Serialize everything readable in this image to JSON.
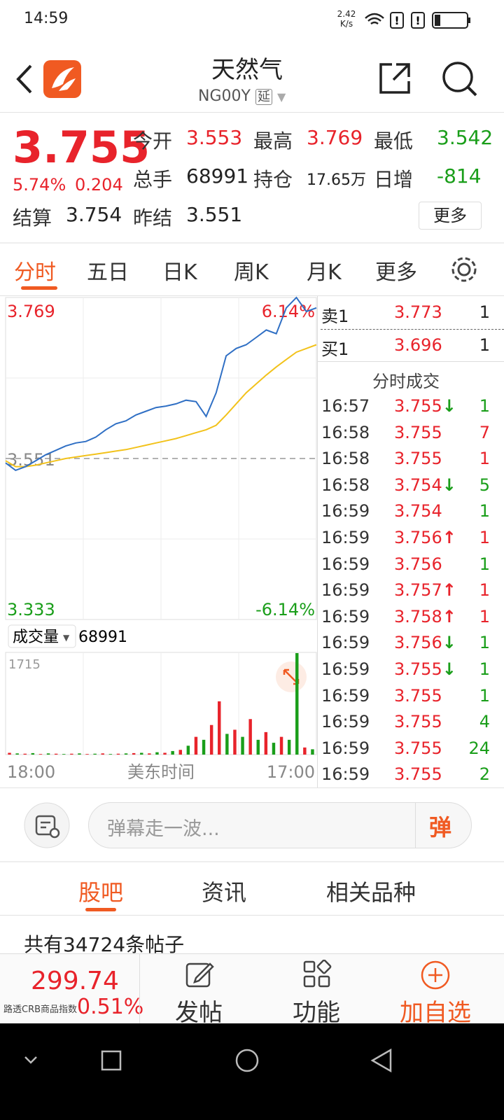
{
  "status_bar": {
    "time": "14:59",
    "speed": "2.42",
    "speed_unit": "K/s"
  },
  "header": {
    "title": "天然气",
    "code": "NG00Y",
    "badge": "延"
  },
  "quote": {
    "price": 3.755,
    "change_percent": "5.74%",
    "change": 0.204,
    "items": [
      {
        "label": "今开",
        "value": 3.553,
        "color": "#e8232b"
      },
      {
        "label": "最高",
        "value": 3.769,
        "color": "#e8232b"
      },
      {
        "label": "最低",
        "value": 3.542,
        "color": "#1a9e1a"
      },
      {
        "label": "总手",
        "value": 68991,
        "color": "#222222"
      },
      {
        "label": "持仓",
        "value": "17.65万",
        "color": "#222222"
      },
      {
        "label": "日增",
        "value": -814,
        "color": "#1a9e1a"
      },
      {
        "label": "结算",
        "value": 3.754,
        "color": "#222222"
      },
      {
        "label": "昨结",
        "value": 3.551,
        "color": "#222222"
      }
    ],
    "more_button": "更多"
  },
  "tabs": {
    "items": [
      "分时",
      "五日",
      "日K",
      "周K",
      "月K",
      "更多"
    ],
    "active": 0
  },
  "chart_data": [
    {
      "type": "line",
      "ylim": [
        3.333,
        3.769
      ],
      "yticks": [
        3.333,
        3.551,
        3.769
      ],
      "ytick_colors": [
        "#1a9e1a",
        "#888888",
        "#e8232b"
      ],
      "right_labels": [
        "-6.14%",
        "6.14%"
      ],
      "xlabels": [
        "18:00",
        "美东时间",
        "17:00"
      ],
      "series": [
        {
          "color": "#2f6fc4",
          "values": [
            3.545,
            3.535,
            3.54,
            3.548,
            3.556,
            3.562,
            3.568,
            3.572,
            3.574,
            3.58,
            3.59,
            3.598,
            3.602,
            3.61,
            3.615,
            3.62,
            3.622,
            3.625,
            3.63,
            3.628,
            3.608,
            3.64,
            3.69,
            3.7,
            3.705,
            3.715,
            3.725,
            3.72,
            3.755,
            3.769,
            3.75,
            3.755
          ]
        },
        {
          "color": "#f2c21b",
          "values": [
            3.548,
            3.54,
            3.54,
            3.542,
            3.545,
            3.548,
            3.551,
            3.553,
            3.555,
            3.557,
            3.559,
            3.561,
            3.563,
            3.566,
            3.569,
            3.572,
            3.575,
            3.578,
            3.582,
            3.586,
            3.59,
            3.596,
            3.61,
            3.625,
            3.64,
            3.652,
            3.664,
            3.675,
            3.685,
            3.695,
            3.7,
            3.705
          ]
        }
      ]
    },
    {
      "type": "bar",
      "label": "成交量",
      "total": 68991,
      "ylim": [
        0,
        1715
      ],
      "yticks": [
        1715
      ],
      "values": [
        30,
        20,
        15,
        25,
        10,
        20,
        15,
        10,
        15,
        20,
        10,
        15,
        20,
        10,
        15,
        20,
        25,
        30,
        20,
        40,
        30,
        60,
        80,
        150,
        300,
        250,
        500,
        900,
        350,
        420,
        300,
        600,
        250,
        380,
        200,
        300,
        250,
        1715,
        120,
        90
      ],
      "colors": [
        "#e8232b",
        "#1a9e1a",
        "#e8232b",
        "#1a9e1a",
        "#e8232b",
        "#1a9e1a",
        "#e8232b",
        "#1a9e1a",
        "#e8232b",
        "#1a9e1a",
        "#e8232b",
        "#1a9e1a",
        "#e8232b",
        "#1a9e1a",
        "#e8232b",
        "#1a9e1a",
        "#e8232b",
        "#1a9e1a",
        "#e8232b",
        "#1a9e1a",
        "#e8232b",
        "#1a9e1a",
        "#e8232b",
        "#1a9e1a",
        "#e8232b",
        "#1a9e1a",
        "#e8232b",
        "#e8232b",
        "#1a9e1a",
        "#e8232b",
        "#1a9e1a",
        "#e8232b",
        "#1a9e1a",
        "#e8232b",
        "#1a9e1a",
        "#e8232b",
        "#1a9e1a",
        "#1a9e1a",
        "#e8232b",
        "#1a9e1a"
      ]
    }
  ],
  "order_book": {
    "rows": [
      {
        "label": "卖1",
        "price": 3.773,
        "volume": 1
      },
      {
        "label": "买1",
        "price": 3.696,
        "volume": 1
      }
    ],
    "title": "分时成交"
  },
  "trades": [
    {
      "time": "16:57",
      "price": 3.755,
      "arrow": "↓",
      "volume": 1,
      "color": "#1a9e1a"
    },
    {
      "time": "16:58",
      "price": 3.755,
      "volume": 7,
      "color": "#e8232b"
    },
    {
      "time": "16:58",
      "price": 3.755,
      "volume": 1,
      "color": "#e8232b"
    },
    {
      "time": "16:58",
      "price": 3.754,
      "arrow": "↓",
      "volume": 5,
      "color": "#1a9e1a"
    },
    {
      "time": "16:59",
      "price": 3.754,
      "volume": 1,
      "color": "#1a9e1a"
    },
    {
      "time": "16:59",
      "price": 3.756,
      "arrow": "↑",
      "volume": 1,
      "color": "#e8232b"
    },
    {
      "time": "16:59",
      "price": 3.756,
      "volume": 1,
      "color": "#1a9e1a"
    },
    {
      "time": "16:59",
      "price": 3.757,
      "arrow": "↑",
      "volume": 1,
      "color": "#e8232b"
    },
    {
      "time": "16:59",
      "price": 3.758,
      "arrow": "↑",
      "volume": 1,
      "color": "#e8232b"
    },
    {
      "time": "16:59",
      "price": 3.756,
      "arrow": "↓",
      "volume": 1,
      "color": "#1a9e1a"
    },
    {
      "time": "16:59",
      "price": 3.755,
      "arrow": "↓",
      "volume": 1,
      "color": "#1a9e1a"
    },
    {
      "time": "16:59",
      "price": 3.755,
      "volume": 1,
      "color": "#1a9e1a"
    },
    {
      "time": "16:59",
      "price": 3.755,
      "volume": 4,
      "color": "#1a9e1a"
    },
    {
      "time": "16:59",
      "price": 3.755,
      "volume": 24,
      "color": "#1a9e1a"
    },
    {
      "time": "16:59",
      "price": 3.755,
      "volume": 2,
      "color": "#1a9e1a"
    }
  ],
  "comment_bar": {
    "placeholder": "弹幕走一波...",
    "button": "弹"
  },
  "section_tabs": {
    "items": [
      "股吧",
      "资讯",
      "相关品种"
    ],
    "active": 0
  },
  "posts": {
    "count_text": "共有34724条帖子"
  },
  "bottom_bar": {
    "index_value": 299.74,
    "index_name": "路透CRB商品指数",
    "index_change": "0.51%",
    "actions": [
      "发帖",
      "功能",
      "加自选"
    ]
  }
}
